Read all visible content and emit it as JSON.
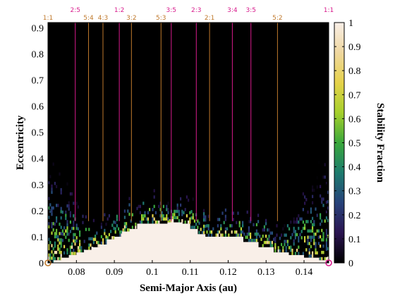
{
  "chart_data": {
    "type": "heatmap",
    "xlabel": "Semi-Major Axis (au)",
    "ylabel": "Eccentricity",
    "colorbar_label": "Stability Fraction",
    "xlim": [
      0.0725,
      0.1465
    ],
    "ylim": [
      0,
      0.92
    ],
    "x_ticks": [
      "0.08",
      "0.09",
      "0.1",
      "0.11",
      "0.12",
      "0.13",
      "0.14"
    ],
    "x_tick_values": [
      0.08,
      0.09,
      0.1,
      0.11,
      0.12,
      0.13,
      0.14
    ],
    "y_ticks": [
      "0",
      "0.1",
      "0.2",
      "0.3",
      "0.4",
      "0.5",
      "0.6",
      "0.7",
      "0.8",
      "0.9"
    ],
    "y_tick_values": [
      0,
      0.1,
      0.2,
      0.3,
      0.4,
      0.5,
      0.6,
      0.7,
      0.8,
      0.9
    ],
    "colorbar_ticks": [
      "0",
      "0.1",
      "0.2",
      "0.3",
      "0.4",
      "0.5",
      "0.6",
      "0.7",
      "0.8",
      "0.9",
      "1"
    ],
    "colorbar_tick_values": [
      0,
      0.1,
      0.2,
      0.3,
      0.4,
      0.5,
      0.6,
      0.7,
      0.8,
      0.9,
      1
    ],
    "colorbar_range": [
      0,
      1
    ],
    "colormap_stops": [
      "#000000",
      "#2a1450",
      "#27427a",
      "#1d7b6e",
      "#3aa83c",
      "#a6d02c",
      "#e6d24a",
      "#efd7a0",
      "#f9efe8"
    ],
    "stable_region": [
      {
        "a": 0.073,
        "e": 0.0
      },
      {
        "a": 0.074,
        "e": 0.01
      },
      {
        "a": 0.076,
        "e": 0.02
      },
      {
        "a": 0.078,
        "e": 0.03
      },
      {
        "a": 0.08,
        "e": 0.04
      },
      {
        "a": 0.082,
        "e": 0.05
      },
      {
        "a": 0.084,
        "e": 0.06
      },
      {
        "a": 0.086,
        "e": 0.07
      },
      {
        "a": 0.088,
        "e": 0.09
      },
      {
        "a": 0.09,
        "e": 0.1
      },
      {
        "a": 0.092,
        "e": 0.12
      },
      {
        "a": 0.094,
        "e": 0.13
      },
      {
        "a": 0.096,
        "e": 0.15
      },
      {
        "a": 0.104,
        "e": 0.155
      },
      {
        "a": 0.108,
        "e": 0.15
      },
      {
        "a": 0.11,
        "e": 0.13
      },
      {
        "a": 0.112,
        "e": 0.11
      },
      {
        "a": 0.114,
        "e": 0.1
      },
      {
        "a": 0.118,
        "e": 0.1
      },
      {
        "a": 0.12,
        "e": 0.1
      },
      {
        "a": 0.124,
        "e": 0.08
      },
      {
        "a": 0.128,
        "e": 0.06
      },
      {
        "a": 0.132,
        "e": 0.04
      },
      {
        "a": 0.136,
        "e": 0.03
      },
      {
        "a": 0.14,
        "e": 0.02
      },
      {
        "a": 0.144,
        "e": 0.01
      },
      {
        "a": 0.146,
        "e": 0.0
      }
    ],
    "resonances": [
      {
        "label": "1:1",
        "a": 0.0725,
        "color": "#c0792c",
        "row": "bottom"
      },
      {
        "label": "2:5",
        "a": 0.0797,
        "color": "#d81b8c",
        "row": "top"
      },
      {
        "label": "5:4",
        "a": 0.0832,
        "color": "#c0792c",
        "row": "bottom"
      },
      {
        "label": "4:3",
        "a": 0.087,
        "color": "#c0792c",
        "row": "bottom"
      },
      {
        "label": "1:2",
        "a": 0.0913,
        "color": "#d81b8c",
        "row": "top"
      },
      {
        "label": "3:2",
        "a": 0.0945,
        "color": "#c0792c",
        "row": "bottom"
      },
      {
        "label": "5:3",
        "a": 0.1023,
        "color": "#c0792c",
        "row": "bottom"
      },
      {
        "label": "3:5",
        "a": 0.105,
        "color": "#d81b8c",
        "row": "top"
      },
      {
        "label": "2:3",
        "a": 0.1116,
        "color": "#d81b8c",
        "row": "top"
      },
      {
        "label": "2:1",
        "a": 0.1151,
        "color": "#c0792c",
        "row": "bottom"
      },
      {
        "label": "3:4",
        "a": 0.1211,
        "color": "#d81b8c",
        "row": "top"
      },
      {
        "label": "3:5",
        "a": 0.126,
        "color": "#d81b8c",
        "row": "top"
      },
      {
        "label": "5:2",
        "a": 0.133,
        "color": "#c0792c",
        "row": "bottom"
      },
      {
        "label": "1:1",
        "a": 0.1465,
        "color": "#d81b8c",
        "row": "top"
      }
    ],
    "planets": [
      {
        "a": 0.0725,
        "e": 0.0,
        "color": "#c0792c"
      },
      {
        "a": 0.1465,
        "e": 0.0,
        "color": "#d81b8c"
      }
    ],
    "background_color": "#000000",
    "grid": false
  }
}
